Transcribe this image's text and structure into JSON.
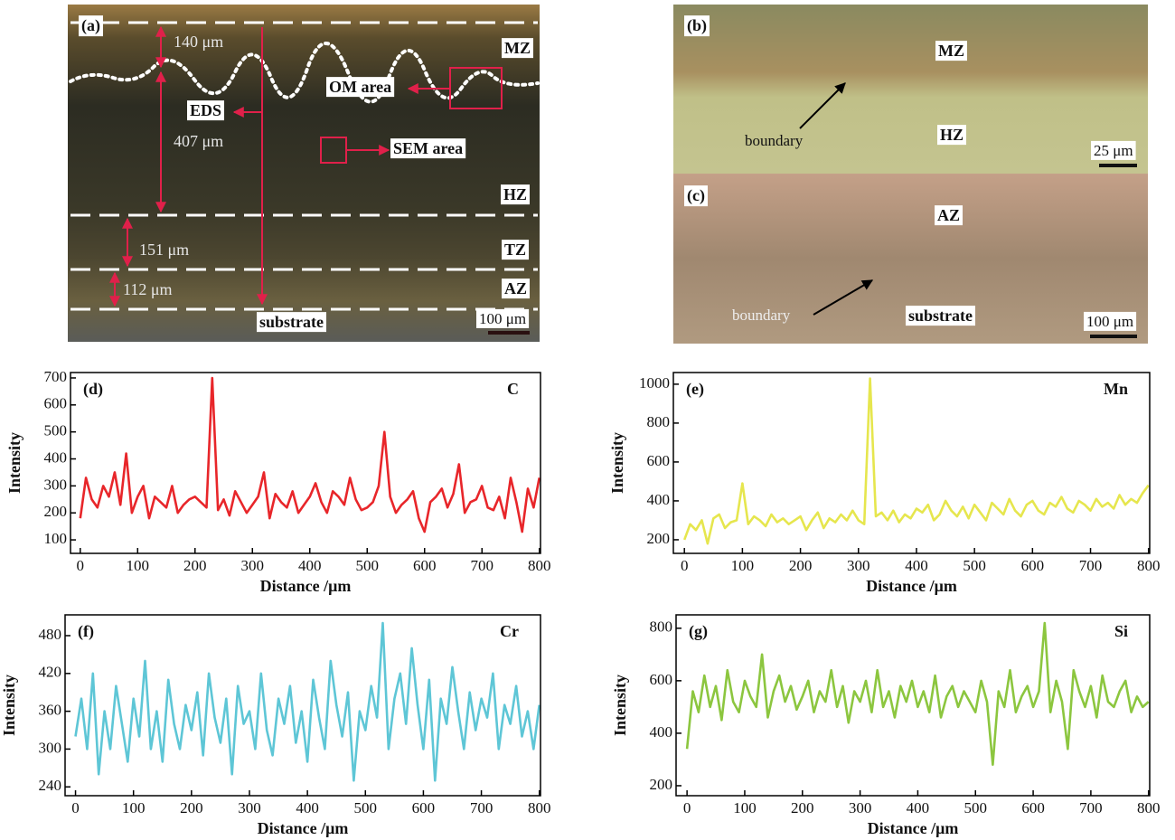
{
  "micrographs": [
    {
      "label": "(a)",
      "annotations": [
        "MZ",
        "140 μm",
        "OM area",
        "EDS",
        "407 μm",
        "SEM area",
        "HZ",
        "151 μm",
        "TZ",
        "112 μm",
        "AZ",
        "substrate"
      ],
      "scale_bar": "100 μm"
    },
    {
      "label": "(b)",
      "annotations": [
        "MZ",
        "boundary",
        "HZ"
      ],
      "scale_bar": "25 μm"
    },
    {
      "label": "(c)",
      "annotations": [
        "AZ",
        "boundary",
        "substrate"
      ],
      "scale_bar": "100 μm"
    }
  ],
  "chart_data": [
    {
      "type": "line",
      "panel_label": "(d)",
      "x_label": "Distance /μm",
      "y_label": "Intensity",
      "x": [
        0,
        10,
        20,
        30,
        40,
        50,
        60,
        70,
        80,
        90,
        100,
        110,
        120,
        130,
        140,
        150,
        160,
        170,
        180,
        190,
        200,
        210,
        220,
        230,
        240,
        250,
        260,
        270,
        280,
        290,
        300,
        310,
        320,
        330,
        340,
        350,
        360,
        370,
        380,
        390,
        400,
        410,
        420,
        430,
        440,
        450,
        460,
        470,
        480,
        490,
        500,
        510,
        520,
        530,
        540,
        550,
        560,
        570,
        580,
        590,
        600,
        610,
        620,
        630,
        640,
        650,
        660,
        670,
        680,
        690,
        700,
        710,
        720,
        730,
        740,
        750,
        760,
        770,
        780,
        790,
        800
      ],
      "series": [
        {
          "name": "C",
          "color": "#e8262a",
          "values": [
            180,
            330,
            250,
            220,
            300,
            260,
            350,
            230,
            420,
            200,
            260,
            300,
            180,
            260,
            240,
            220,
            300,
            200,
            230,
            250,
            260,
            240,
            220,
            700,
            210,
            250,
            190,
            280,
            240,
            200,
            230,
            260,
            350,
            180,
            270,
            240,
            220,
            280,
            200,
            230,
            260,
            310,
            240,
            200,
            280,
            260,
            230,
            330,
            250,
            210,
            220,
            240,
            300,
            500,
            260,
            200,
            230,
            250,
            280,
            180,
            130,
            240,
            260,
            290,
            220,
            270,
            380,
            200,
            240,
            250,
            300,
            220,
            210,
            260,
            180,
            330,
            240,
            130,
            290,
            220,
            330
          ]
        }
      ],
      "xlim": [
        -17,
        802
      ],
      "ylim": [
        50,
        720
      ],
      "xticks": [
        0,
        100,
        200,
        300,
        400,
        500,
        600,
        700,
        800
      ],
      "yticks": [
        100,
        200,
        300,
        400,
        500,
        600,
        700
      ]
    },
    {
      "type": "line",
      "panel_label": "(e)",
      "x_label": "Distance /μm",
      "y_label": "Intensity",
      "x": [
        0,
        10,
        20,
        30,
        40,
        50,
        60,
        70,
        80,
        90,
        100,
        110,
        120,
        130,
        140,
        150,
        160,
        170,
        180,
        190,
        200,
        210,
        220,
        230,
        240,
        250,
        260,
        270,
        280,
        290,
        300,
        310,
        320,
        330,
        340,
        350,
        360,
        370,
        380,
        390,
        400,
        410,
        420,
        430,
        440,
        450,
        460,
        470,
        480,
        490,
        500,
        510,
        520,
        530,
        540,
        550,
        560,
        570,
        580,
        590,
        600,
        610,
        620,
        630,
        640,
        650,
        660,
        670,
        680,
        690,
        700,
        710,
        720,
        730,
        740,
        750,
        760,
        770,
        780,
        790,
        800
      ],
      "series": [
        {
          "name": "Mn",
          "color": "#e6e64e",
          "values": [
            200,
            280,
            250,
            300,
            180,
            310,
            330,
            260,
            290,
            300,
            490,
            280,
            320,
            300,
            270,
            330,
            290,
            310,
            280,
            300,
            320,
            250,
            300,
            340,
            260,
            310,
            290,
            330,
            300,
            350,
            300,
            280,
            1030,
            320,
            340,
            300,
            350,
            290,
            330,
            310,
            360,
            340,
            380,
            300,
            330,
            400,
            350,
            320,
            370,
            310,
            380,
            340,
            300,
            390,
            360,
            330,
            410,
            350,
            320,
            380,
            400,
            350,
            330,
            390,
            370,
            420,
            360,
            340,
            400,
            380,
            350,
            410,
            370,
            390,
            360,
            430,
            380,
            410,
            390,
            440,
            480
          ]
        }
      ],
      "xlim": [
        -19,
        802
      ],
      "ylim": [
        130,
        1060
      ],
      "xticks": [
        0,
        100,
        200,
        300,
        400,
        500,
        600,
        700,
        800
      ],
      "yticks": [
        200,
        400,
        600,
        800,
        1000
      ]
    },
    {
      "type": "line",
      "panel_label": "(f)",
      "x_label": "Distance /μm",
      "y_label": "Intensity",
      "x": [
        0,
        10,
        20,
        30,
        40,
        50,
        60,
        70,
        80,
        90,
        100,
        110,
        120,
        130,
        140,
        150,
        160,
        170,
        180,
        190,
        200,
        210,
        220,
        230,
        240,
        250,
        260,
        270,
        280,
        290,
        300,
        310,
        320,
        330,
        340,
        350,
        360,
        370,
        380,
        390,
        400,
        410,
        420,
        430,
        440,
        450,
        460,
        470,
        480,
        490,
        500,
        510,
        520,
        530,
        540,
        550,
        560,
        570,
        580,
        590,
        600,
        610,
        620,
        630,
        640,
        650,
        660,
        670,
        680,
        690,
        700,
        710,
        720,
        730,
        740,
        750,
        760,
        770,
        780,
        790,
        800
      ],
      "series": [
        {
          "name": "Cr",
          "color": "#5ec6d6",
          "values": [
            320,
            380,
            300,
            420,
            260,
            360,
            300,
            400,
            340,
            280,
            380,
            320,
            440,
            300,
            360,
            280,
            410,
            340,
            300,
            370,
            330,
            390,
            290,
            420,
            350,
            310,
            380,
            260,
            400,
            340,
            360,
            300,
            420,
            330,
            290,
            380,
            340,
            400,
            310,
            360,
            280,
            410,
            350,
            300,
            440,
            370,
            320,
            390,
            250,
            360,
            330,
            400,
            350,
            500,
            300,
            380,
            420,
            340,
            460,
            370,
            300,
            410,
            250,
            380,
            340,
            430,
            360,
            300,
            390,
            330,
            380,
            350,
            420,
            300,
            370,
            340,
            400,
            320,
            360,
            300,
            370
          ]
        }
      ],
      "xlim": [
        -18,
        802
      ],
      "ylim": [
        226,
        513
      ],
      "xticks": [
        0,
        100,
        200,
        300,
        400,
        500,
        600,
        700,
        800
      ],
      "yticks": [
        240,
        300,
        360,
        420,
        480
      ]
    },
    {
      "type": "line",
      "panel_label": "(g)",
      "x_label": "Distance /μm",
      "y_label": "Intensity",
      "x": [
        0,
        10,
        20,
        30,
        40,
        50,
        60,
        70,
        80,
        90,
        100,
        110,
        120,
        130,
        140,
        150,
        160,
        170,
        180,
        190,
        200,
        210,
        220,
        230,
        240,
        250,
        260,
        270,
        280,
        290,
        300,
        310,
        320,
        330,
        340,
        350,
        360,
        370,
        380,
        390,
        400,
        410,
        420,
        430,
        440,
        450,
        460,
        470,
        480,
        490,
        500,
        510,
        520,
        530,
        540,
        550,
        560,
        570,
        580,
        590,
        600,
        610,
        620,
        630,
        640,
        650,
        660,
        670,
        680,
        690,
        700,
        710,
        720,
        730,
        740,
        750,
        760,
        770,
        780,
        790,
        800
      ],
      "series": [
        {
          "name": "Si",
          "color": "#8cc63f",
          "values": [
            340,
            560,
            480,
            620,
            500,
            580,
            450,
            640,
            520,
            480,
            600,
            540,
            500,
            700,
            460,
            560,
            620,
            520,
            580,
            490,
            540,
            600,
            480,
            560,
            520,
            640,
            500,
            580,
            440,
            560,
            520,
            600,
            480,
            640,
            500,
            560,
            460,
            580,
            520,
            600,
            500,
            560,
            480,
            620,
            460,
            540,
            580,
            500,
            560,
            520,
            480,
            600,
            520,
            280,
            560,
            500,
            640,
            480,
            540,
            580,
            500,
            560,
            820,
            480,
            600,
            520,
            340,
            640,
            560,
            500,
            580,
            460,
            620,
            520,
            500,
            560,
            600,
            480,
            540,
            500,
            520
          ]
        }
      ],
      "xlim": [
        -19,
        802
      ],
      "ylim": [
        162,
        851
      ],
      "xticks": [
        0,
        100,
        200,
        300,
        400,
        500,
        600,
        700,
        800
      ],
      "yticks": [
        200,
        400,
        600,
        800
      ]
    }
  ]
}
